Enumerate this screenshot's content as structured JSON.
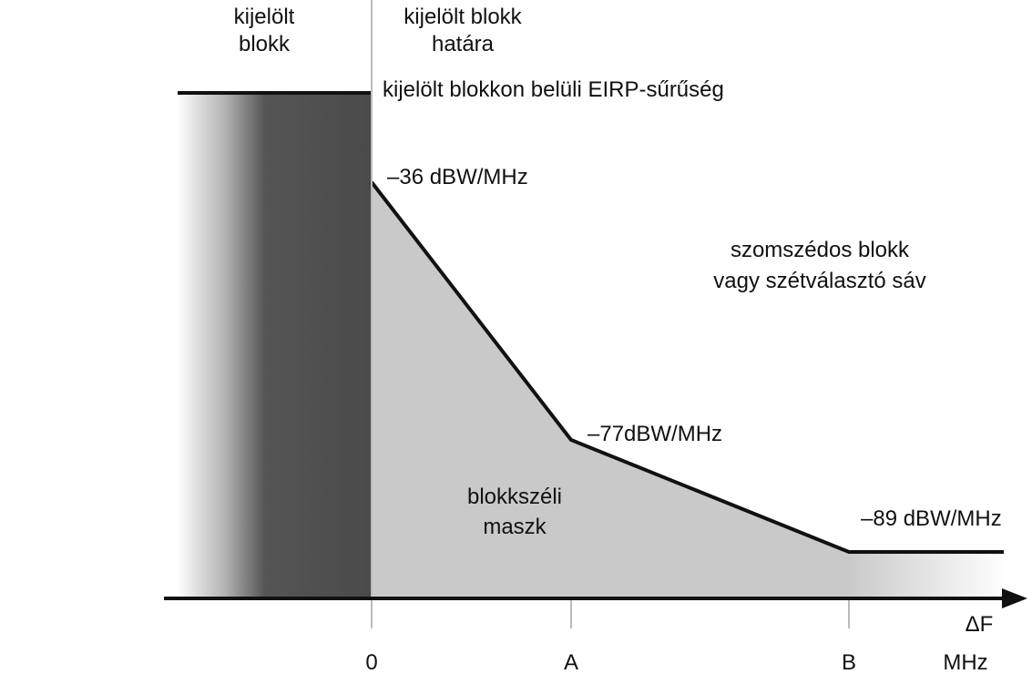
{
  "header": {
    "left": [
      "kijelölt",
      "blokk"
    ],
    "right": [
      "kijelölt blokk",
      "határa"
    ]
  },
  "labels": {
    "eirp": "kijelölt blokkon belüli EIRP-sűrűség",
    "level_0": "–36 dBW/MHz",
    "level_a": "–77dBW/MHz",
    "level_b": "–89 dBW/MHz",
    "adjacent": [
      "szomszédos blokk",
      "vagy szétválasztó sáv"
    ],
    "mask": [
      "blokkszéli",
      "maszk"
    ]
  },
  "axis": {
    "ticks": [
      "0",
      "A",
      "B"
    ],
    "label": "ΔF",
    "unit": "MHz"
  }
}
